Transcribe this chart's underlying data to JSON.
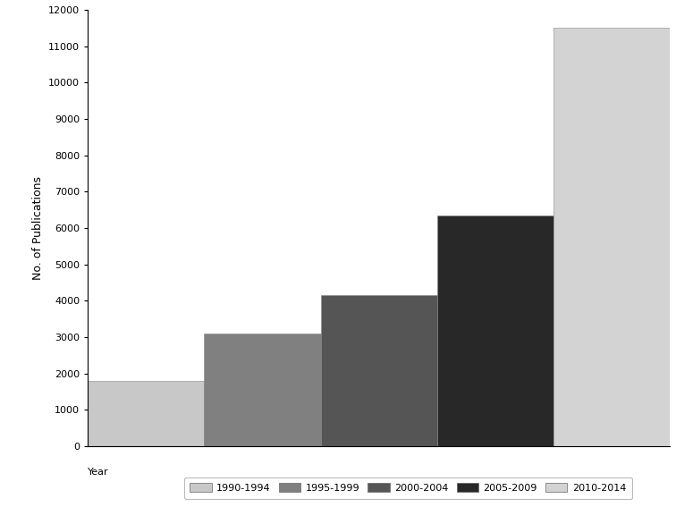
{
  "categories": [
    "1990-1994",
    "1995-1999",
    "2000-2004",
    "2005-2009",
    "2010-2014"
  ],
  "values": [
    1800,
    3100,
    4150,
    6350,
    11500
  ],
  "bar_colors": [
    "#c8c8c8",
    "#808080",
    "#555555",
    "#282828",
    "#d3d3d3"
  ],
  "ylabel": "No. of Publications",
  "ylim": [
    0,
    12000
  ],
  "yticks": [
    0,
    1000,
    2000,
    3000,
    4000,
    5000,
    6000,
    7000,
    8000,
    9000,
    10000,
    11000,
    12000
  ],
  "legend_title": "Year",
  "background_color": "#ffffff",
  "bar_edgecolor": "#888888",
  "legend_labels": [
    "1990-1994",
    "1995-1999",
    "2000-2004",
    "2005-2009",
    "2010-2014"
  ]
}
